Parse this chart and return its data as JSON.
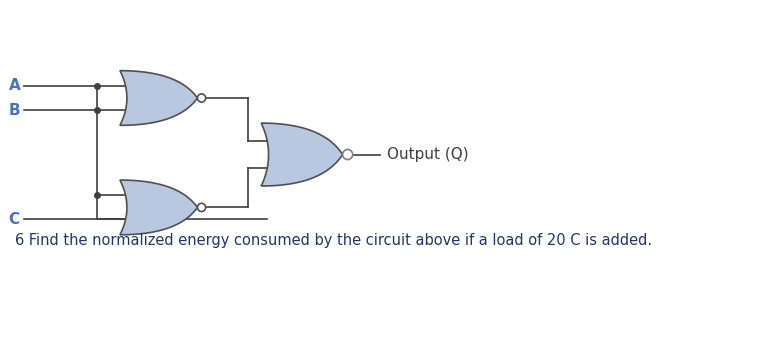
{
  "bg_color": "#ffffff",
  "gate_fill": "#b8c8e0",
  "gate_edge": "#505050",
  "line_color": "#404040",
  "label_A": "A",
  "label_B": "B",
  "label_C": "C",
  "label_output": "Output (Q)",
  "label_color_ABC": "#4472c4",
  "label_color_output": "#404040",
  "question_text": "6 Find the normalized energy consumed by the circuit above if a load of 20 C is added.",
  "question_color": "#1f3864",
  "question_fontsize": 10.5,
  "label_fontsize": 11,
  "fig_width": 7.57,
  "fig_height": 3.41,
  "dpi": 100,
  "xlim": [
    0,
    7.57
  ],
  "ylim": [
    0,
    3.41
  ]
}
